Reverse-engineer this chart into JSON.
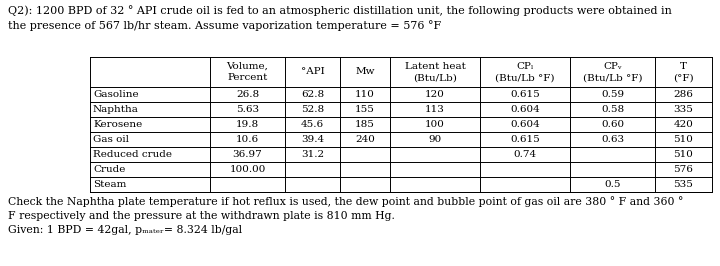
{
  "title_text": "Q2): 1200 BPD of 32 ° API crude oil is fed to an atmospheric distillation unit, the following products were obtained in\nthe presence of 567 lb/hr steam. Assume vaporization temperature = 576 °F",
  "footer_text": "Check the Naphtha plate temperature if hot reflux is used, the dew point and bubble point of gas oil are 380 ° F and 360 °\nF respectively and the pressure at the withdrawn plate is 810 mm Hg.\nGiven: 1 BPD = 42gal, pₘₐₜₑᵣ= 8.324 lb/gal",
  "rows": [
    [
      "Gasoline",
      "26.8",
      "62.8",
      "110",
      "120",
      "0.615",
      "0.59",
      "286"
    ],
    [
      "Naphtha",
      "5.63",
      "52.8",
      "155",
      "113",
      "0.604",
      "0.58",
      "335"
    ],
    [
      "Kerosene",
      "19.8",
      "45.6",
      "185",
      "100",
      "0.604",
      "0.60",
      "420"
    ],
    [
      "Gas oil",
      "10.6",
      "39.4",
      "240",
      "90",
      "0.615",
      "0.63",
      "510"
    ],
    [
      "Reduced crude",
      "36.97",
      "31.2",
      "",
      "",
      "0.74",
      "",
      "510"
    ],
    [
      "Crude",
      "100.00",
      "",
      "",
      "",
      "",
      "",
      "576"
    ],
    [
      "Steam",
      "",
      "",
      "",
      "",
      "",
      "0.5",
      "535"
    ]
  ],
  "bg_color": "#ffffff",
  "font_size": 7.5,
  "header_font_size": 7.5,
  "title_font_size": 8.0,
  "footer_font_size": 7.8
}
